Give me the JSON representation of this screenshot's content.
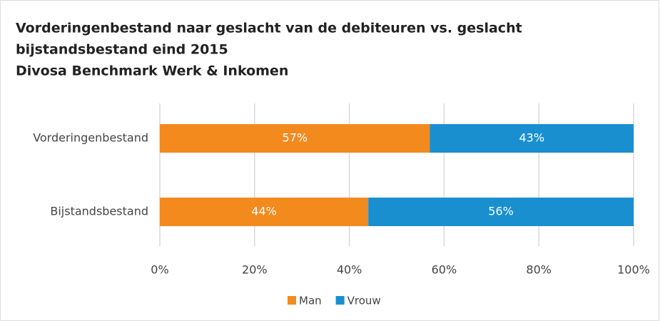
{
  "chart_data": {
    "type": "stacked_bar_horizontal",
    "title": [
      "Vorderingenbestand naar geslacht van de debiteuren vs. geslacht",
      "bijstandsbestand eind 2015",
      "Divosa Benchmark Werk & Inkomen"
    ],
    "categories": [
      "Vorderingenbestand",
      "Bijstandsbestand"
    ],
    "series": [
      {
        "name": "Man",
        "color": "#f28a1e",
        "values": [
          57,
          44
        ],
        "value_labels": [
          "57%",
          "44%"
        ]
      },
      {
        "name": "Vrouw",
        "color": "#1a8fd0",
        "values": [
          43,
          56
        ],
        "value_labels": [
          "43%",
          "56%"
        ]
      }
    ],
    "xlim": [
      0,
      100
    ],
    "xticks": [
      {
        "value": 0,
        "label": "0%"
      },
      {
        "value": 20,
        "label": "20%"
      },
      {
        "value": 40,
        "label": "40%"
      },
      {
        "value": 60,
        "label": "60%"
      },
      {
        "value": 80,
        "label": "80%"
      },
      {
        "value": 100,
        "label": "100%"
      }
    ],
    "grid": true
  }
}
